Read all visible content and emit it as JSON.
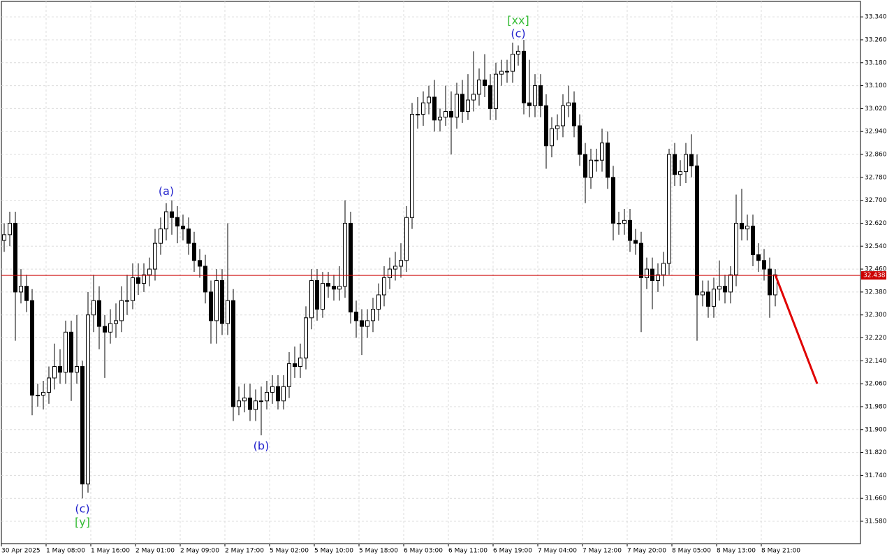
{
  "chart_data": {
    "type": "candlestick",
    "categories": [
      "30 Apr 2025",
      null,
      null,
      null,
      null,
      null,
      null,
      null,
      "1 May 08:00",
      null,
      null,
      null,
      null,
      null,
      null,
      null,
      "1 May 16:00",
      null,
      null,
      null,
      null,
      null,
      null,
      null,
      "2 May 01:00",
      null,
      null,
      null,
      null,
      null,
      null,
      null,
      "2 May 09:00",
      null,
      null,
      null,
      null,
      null,
      null,
      null,
      "2 May 17:00",
      null,
      null,
      null,
      null,
      null,
      null,
      null,
      "5 May 02:00",
      null,
      null,
      null,
      null,
      null,
      null,
      null,
      "5 May 10:00",
      null,
      null,
      null,
      null,
      null,
      null,
      null,
      "5 May 18:00",
      null,
      null,
      null,
      null,
      null,
      null,
      null,
      "6 May 03:00",
      null,
      null,
      null,
      null,
      null,
      null,
      null,
      "6 May 11:00",
      null,
      null,
      null,
      null,
      null,
      null,
      null,
      "6 May 19:00",
      null,
      null,
      null,
      null,
      null,
      null,
      null,
      "7 May 04:00",
      null,
      null,
      null,
      null,
      null,
      null,
      null,
      "7 May 12:00",
      null,
      null,
      null,
      null,
      null,
      null,
      null,
      "7 May 20:00",
      null,
      null,
      null,
      null,
      null,
      null,
      null,
      "8 May 05:00",
      null,
      null,
      null,
      null,
      null,
      null,
      null,
      "8 May 13:00",
      null,
      null,
      null,
      null,
      null,
      null,
      null,
      "8 May 21:00",
      null,
      null
    ],
    "open": [
      32.56,
      32.58,
      32.62,
      32.38,
      32.4,
      32.35,
      32.02,
      32.02,
      32.03,
      32.08,
      32.12,
      32.1,
      32.24,
      32.1,
      32.12,
      31.71,
      32.3,
      32.35,
      32.26,
      32.24,
      32.27,
      32.28,
      32.35,
      32.35,
      32.43,
      32.41,
      32.44,
      32.46,
      32.55,
      32.6,
      32.66,
      32.64,
      32.61,
      32.6,
      32.55,
      32.49,
      32.47,
      32.38,
      32.28,
      32.42,
      32.27,
      32.35,
      31.98,
      32.0,
      32.01,
      31.97,
      32.0,
      32.0,
      32.03,
      32.05,
      32.0,
      32.05,
      32.13,
      32.12,
      32.15,
      32.29,
      32.42,
      32.32,
      32.41,
      32.4,
      32.39,
      32.4,
      32.62,
      32.31,
      32.28,
      32.26,
      32.28,
      32.32,
      32.37,
      32.43,
      32.46,
      32.47,
      32.49,
      32.64,
      33.0,
      33.0,
      33.04,
      33.06,
      32.98,
      32.99,
      33.01,
      32.99,
      33.07,
      33.01,
      33.05,
      33.07,
      33.12,
      33.1,
      33.02,
      33.14,
      33.15,
      33.15,
      33.21,
      33.22,
      33.04,
      33.03,
      33.1,
      33.03,
      32.89,
      32.95,
      32.96,
      33.03,
      33.04,
      32.96,
      32.86,
      32.78,
      32.84,
      32.84,
      32.9,
      32.78,
      32.62,
      32.62,
      32.63,
      32.56,
      32.55,
      32.43,
      32.46,
      32.42,
      32.44,
      32.48,
      32.86,
      32.79,
      32.8,
      32.86,
      32.82,
      32.37,
      32.38,
      32.33,
      32.39,
      32.4,
      32.38,
      32.44,
      32.62,
      32.6,
      32.61,
      32.51,
      32.49,
      32.46,
      32.37
    ],
    "high": [
      32.62,
      32.66,
      32.66,
      32.46,
      32.44,
      32.39,
      32.06,
      32.07,
      32.12,
      32.2,
      32.18,
      32.28,
      32.28,
      32.3,
      32.14,
      32.38,
      32.44,
      32.4,
      32.3,
      32.32,
      32.34,
      32.4,
      32.44,
      32.48,
      32.48,
      32.48,
      32.5,
      32.6,
      32.64,
      32.69,
      32.7,
      32.68,
      32.65,
      32.64,
      32.59,
      32.53,
      32.51,
      32.42,
      32.46,
      32.46,
      32.62,
      32.39,
      32.05,
      32.06,
      32.06,
      32.04,
      32.05,
      32.07,
      32.09,
      32.09,
      32.09,
      32.17,
      32.19,
      32.2,
      32.33,
      32.46,
      32.46,
      32.45,
      32.45,
      32.44,
      32.47,
      32.7,
      32.66,
      32.35,
      32.32,
      32.32,
      32.36,
      32.41,
      32.47,
      32.5,
      32.52,
      32.55,
      32.68,
      33.04,
      33.06,
      33.08,
      33.1,
      33.12,
      33.02,
      33.1,
      33.08,
      33.11,
      33.12,
      33.14,
      33.22,
      33.16,
      33.21,
      33.14,
      33.18,
      33.19,
      33.19,
      33.25,
      33.24,
      33.26,
      33.19,
      33.14,
      33.14,
      33.07,
      32.99,
      33.0,
      33.07,
      33.1,
      33.08,
      33.0,
      32.9,
      32.88,
      32.88,
      32.95,
      32.94,
      32.82,
      32.66,
      32.67,
      32.67,
      32.6,
      32.59,
      32.5,
      32.5,
      32.48,
      32.52,
      32.88,
      32.9,
      32.84,
      32.9,
      32.93,
      32.86,
      32.42,
      32.42,
      32.43,
      32.49,
      32.44,
      32.47,
      32.72,
      32.74,
      32.65,
      32.65,
      32.55,
      32.53,
      32.5,
      32.46
    ],
    "low": [
      32.52,
      32.54,
      32.21,
      32.34,
      32.31,
      31.95,
      31.98,
      31.97,
      31.99,
      32.04,
      32.06,
      32.06,
      32.0,
      32.06,
      31.66,
      31.68,
      32.24,
      32.18,
      32.08,
      32.2,
      32.22,
      32.24,
      32.3,
      32.32,
      32.37,
      32.38,
      32.4,
      32.42,
      32.51,
      32.56,
      32.58,
      32.55,
      32.56,
      32.51,
      32.45,
      32.43,
      32.34,
      32.2,
      32.2,
      32.23,
      32.23,
      31.93,
      31.95,
      31.96,
      31.93,
      31.93,
      31.88,
      31.97,
      31.99,
      31.97,
      31.97,
      32.01,
      32.08,
      32.08,
      32.11,
      32.25,
      32.28,
      32.29,
      32.36,
      32.35,
      32.35,
      32.36,
      32.27,
      32.22,
      32.16,
      32.22,
      32.24,
      32.28,
      32.33,
      32.39,
      32.42,
      32.43,
      32.45,
      32.6,
      32.95,
      32.96,
      33.0,
      32.94,
      32.94,
      32.96,
      32.86,
      32.95,
      32.97,
      32.98,
      33.01,
      33.03,
      33.06,
      32.98,
      32.98,
      33.1,
      33.11,
      33.11,
      33.17,
      33.0,
      32.99,
      32.99,
      32.99,
      32.81,
      32.85,
      32.91,
      32.92,
      32.99,
      32.92,
      32.82,
      32.69,
      32.74,
      32.8,
      32.8,
      32.74,
      32.56,
      32.58,
      32.58,
      32.52,
      32.51,
      32.24,
      32.39,
      32.32,
      32.38,
      32.4,
      32.44,
      32.75,
      32.75,
      32.76,
      32.78,
      32.21,
      32.33,
      32.29,
      32.29,
      32.35,
      32.34,
      32.34,
      32.4,
      32.56,
      32.56,
      32.47,
      32.45,
      32.42,
      32.29,
      32.33
    ],
    "close": [
      32.58,
      32.62,
      32.38,
      32.4,
      32.35,
      32.02,
      32.02,
      32.03,
      32.08,
      32.12,
      32.1,
      32.24,
      32.1,
      32.12,
      31.71,
      32.3,
      32.35,
      32.26,
      32.24,
      32.27,
      32.28,
      32.35,
      32.35,
      32.43,
      32.41,
      32.44,
      32.46,
      32.55,
      32.6,
      32.66,
      32.64,
      32.61,
      32.6,
      32.55,
      32.49,
      32.47,
      32.38,
      32.28,
      32.42,
      32.27,
      32.35,
      31.98,
      32.0,
      32.01,
      31.97,
      32.0,
      32.0,
      32.03,
      32.05,
      32.0,
      32.05,
      32.13,
      32.12,
      32.15,
      32.29,
      32.42,
      32.32,
      32.41,
      32.4,
      32.39,
      32.4,
      32.62,
      32.31,
      32.28,
      32.26,
      32.28,
      32.32,
      32.37,
      32.43,
      32.46,
      32.47,
      32.49,
      32.64,
      33.0,
      33.0,
      33.04,
      33.06,
      32.98,
      32.99,
      33.01,
      32.99,
      33.07,
      33.01,
      33.05,
      33.07,
      33.12,
      33.1,
      33.02,
      33.14,
      33.15,
      33.15,
      33.21,
      33.22,
      33.04,
      33.03,
      33.1,
      33.03,
      32.89,
      32.95,
      32.96,
      33.03,
      33.04,
      32.96,
      32.86,
      32.78,
      32.84,
      32.84,
      32.9,
      32.78,
      32.62,
      32.62,
      32.63,
      32.56,
      32.55,
      32.43,
      32.46,
      32.42,
      32.44,
      32.48,
      32.86,
      32.79,
      32.8,
      32.86,
      32.82,
      32.37,
      32.38,
      32.33,
      32.39,
      32.4,
      32.38,
      32.44,
      32.62,
      32.6,
      32.61,
      32.51,
      32.49,
      32.46,
      32.37,
      32.44
    ],
    "ylim": [
      31.502,
      33.394
    ],
    "yticks": [
      {
        "value": 31.58,
        "label": "31.580"
      },
      {
        "value": 31.66,
        "label": "31.660"
      },
      {
        "value": 31.74,
        "label": "31.740"
      },
      {
        "value": 31.82,
        "label": "31.820"
      },
      {
        "value": 31.9,
        "label": "31.900"
      },
      {
        "value": 31.98,
        "label": "31.980"
      },
      {
        "value": 32.06,
        "label": "32.060"
      },
      {
        "value": 32.14,
        "label": "32.140"
      },
      {
        "value": 32.22,
        "label": "32.220"
      },
      {
        "value": 32.3,
        "label": "32.300"
      },
      {
        "value": 32.38,
        "label": "32.380"
      },
      {
        "value": 32.46,
        "label": "32.460"
      },
      {
        "value": 32.54,
        "label": "32.540"
      },
      {
        "value": 32.62,
        "label": "32.620"
      },
      {
        "value": 32.7,
        "label": "32.700"
      },
      {
        "value": 32.78,
        "label": "32.780"
      },
      {
        "value": 32.86,
        "label": "32.860"
      },
      {
        "value": 32.94,
        "label": "32.940"
      },
      {
        "value": 33.02,
        "label": "33.020"
      },
      {
        "value": 33.1,
        "label": "33.100"
      },
      {
        "value": 33.18,
        "label": "33.180"
      },
      {
        "value": 33.26,
        "label": "33.260"
      },
      {
        "value": 33.34,
        "label": "33.340"
      }
    ],
    "grid": true,
    "up_color": "#ffffff",
    "down_color": "#000000",
    "current_price": {
      "value": 32.438,
      "label": "32.438",
      "color": "#cc0000"
    },
    "forecast": {
      "x": [
        138,
        145
      ],
      "values": [
        32.44,
        32.06
      ],
      "color": "#e00000"
    },
    "annotations": [
      {
        "text": "(c)",
        "at": 14,
        "side": "below",
        "color": "#2222cc"
      },
      {
        "text": "[y]",
        "at": 14,
        "side": "below",
        "color": "#33bb33"
      },
      {
        "text": "(a)",
        "at": 29,
        "side": "above",
        "color": "#2222cc"
      },
      {
        "text": "(b)",
        "at": 46,
        "side": "below",
        "color": "#2222cc"
      },
      {
        "text": "(c)",
        "at": 92,
        "side": "above",
        "color": "#2222cc"
      },
      {
        "text": "[xx]",
        "at": 92,
        "side": "above",
        "color": "#33bb33"
      }
    ]
  }
}
